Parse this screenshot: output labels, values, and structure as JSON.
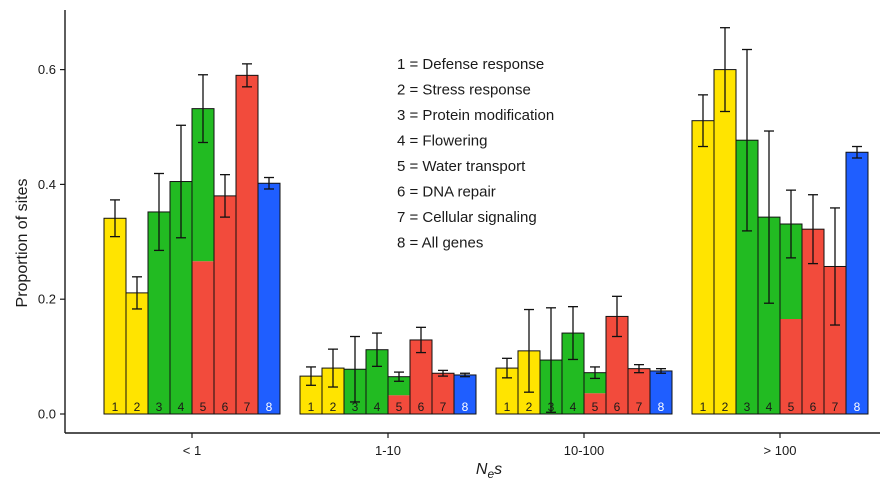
{
  "chart_data": {
    "type": "bar",
    "xlabel_base": "N",
    "xlabel_sub": "e",
    "xlabel_tail": "s",
    "ylabel": "Proportion of sites",
    "ylim": [
      0,
      0.7
    ],
    "yticks": [
      "0.0",
      "0.2",
      "0.4",
      "0.6"
    ],
    "ytick_values": [
      0,
      0.2,
      0.4,
      0.6
    ],
    "grid": false,
    "legend_lines": [
      "1 = Defense response",
      "2 = Stress response",
      "3 = Protein modification",
      "4 = Flowering",
      "5 = Water transport",
      "6 = DNA repair",
      "7 = Cellular signaling",
      "8 = All genes"
    ],
    "categories": [
      "< 1",
      "1-10",
      "10-100",
      "> 100"
    ],
    "bar_labels": [
      "1",
      "2",
      "3",
      "4",
      "5",
      "6",
      "7",
      "8"
    ],
    "colors": [
      "#FFE400",
      "#FFE400",
      "#22BB22",
      "#22BB22",
      "#22BB22",
      "#F24B3C",
      "#F24B3C",
      "#1F5EFF"
    ],
    "split_bar_index": 4,
    "split_lower_color": "#F24B3C",
    "split_fraction": [
      0.5,
      0.5,
      0.5,
      0.5
    ],
    "series": [
      {
        "values": [
          0.341,
          0.066,
          0.08,
          0.511
        ],
        "err": [
          0.032,
          0.016,
          0.017,
          0.045
        ]
      },
      {
        "values": [
          0.211,
          0.08,
          0.11,
          0.6
        ],
        "err": [
          0.028,
          0.033,
          0.072,
          0.073
        ]
      },
      {
        "values": [
          0.352,
          0.078,
          0.094,
          0.477
        ],
        "err": [
          0.067,
          0.057,
          0.091,
          0.158
        ]
      },
      {
        "values": [
          0.405,
          0.112,
          0.141,
          0.343
        ],
        "err": [
          0.098,
          0.029,
          0.046,
          0.15
        ]
      },
      {
        "values": [
          0.532,
          0.065,
          0.072,
          0.331
        ],
        "err": [
          0.059,
          0.008,
          0.01,
          0.059
        ]
      },
      {
        "values": [
          0.38,
          0.129,
          0.17,
          0.322
        ],
        "err": [
          0.037,
          0.022,
          0.035,
          0.06
        ]
      },
      {
        "values": [
          0.59,
          0.071,
          0.079,
          0.257
        ],
        "err": [
          0.02,
          0.005,
          0.007,
          0.102
        ]
      },
      {
        "values": [
          0.402,
          0.068,
          0.075,
          0.456
        ],
        "err": [
          0.01,
          0.003,
          0.004,
          0.01
        ]
      }
    ]
  }
}
